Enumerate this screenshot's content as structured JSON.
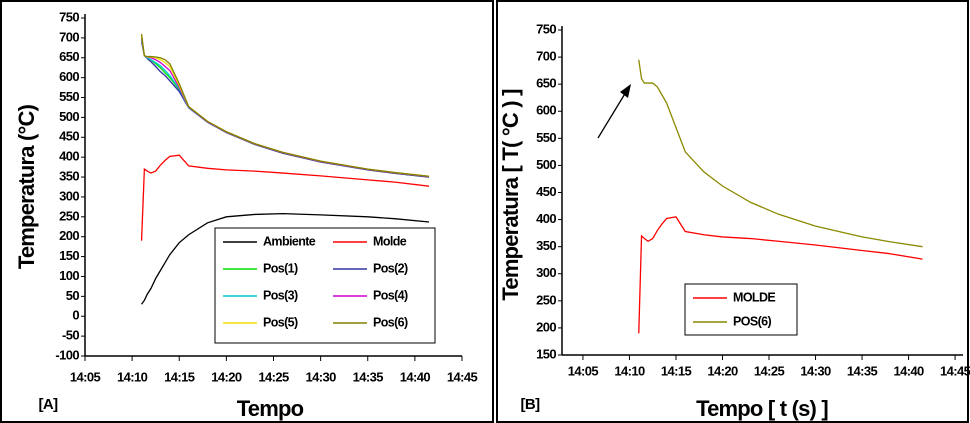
{
  "chart_data": [
    {
      "type": "line",
      "label": "[A]",
      "x_label": "Tempo",
      "y_label": "Temperatura (°C)",
      "xlim": [
        845,
        885
      ],
      "ylim": [
        -100,
        750
      ],
      "xticks": [
        {
          "value": 845,
          "label": "14:05"
        },
        {
          "value": 850,
          "label": "14:10"
        },
        {
          "value": 855,
          "label": "14:15"
        },
        {
          "value": 860,
          "label": "14:20"
        },
        {
          "value": 865,
          "label": "14:25"
        },
        {
          "value": 870,
          "label": "14:30"
        },
        {
          "value": 875,
          "label": "14:35"
        },
        {
          "value": 880,
          "label": "14:40"
        },
        {
          "value": 885,
          "label": "14:45"
        }
      ],
      "yticks": [
        -100,
        -50,
        0,
        50,
        100,
        150,
        200,
        250,
        300,
        350,
        400,
        450,
        500,
        550,
        600,
        650,
        700,
        750
      ],
      "x": [
        851,
        851.3,
        851.6,
        852,
        852.5,
        853,
        853.5,
        854,
        855,
        856,
        858,
        860,
        863,
        866,
        870,
        875,
        878,
        881.5
      ],
      "series": [
        {
          "name": "Ambiente",
          "color": "#000000",
          "values": [
            30,
            40,
            55,
            70,
            95,
            115,
            135,
            155,
            185,
            205,
            235,
            250,
            256,
            258,
            255,
            250,
            245,
            237
          ]
        },
        {
          "name": "Molde",
          "color": "#ff0000",
          "values": [
            190,
            370,
            365,
            360,
            365,
            380,
            392,
            402,
            405,
            378,
            372,
            368,
            365,
            360,
            353,
            343,
            337,
            327
          ]
        },
        {
          "name": "Pos(1)",
          "color": "#00e000",
          "values": [
            700,
            655,
            650,
            645,
            635,
            625,
            612,
            600,
            570,
            525,
            488,
            462,
            432,
            410,
            388,
            368,
            359,
            350
          ]
        },
        {
          "name": "Pos(2)",
          "color": "#3030a0",
          "values": [
            690,
            655,
            648,
            640,
            628,
            615,
            605,
            592,
            565,
            524,
            488,
            462,
            432,
            410,
            388,
            368,
            359,
            350
          ]
        },
        {
          "name": "Pos(3)",
          "color": "#00c8d0",
          "values": [
            695,
            655,
            650,
            645,
            638,
            630,
            618,
            605,
            572,
            525,
            489,
            463,
            433,
            411,
            389,
            369,
            360,
            351
          ]
        },
        {
          "name": "Pos(4)",
          "color": "#d000d0",
          "values": [
            700,
            655,
            652,
            650,
            645,
            638,
            628,
            618,
            575,
            526,
            489,
            463,
            433,
            411,
            389,
            369,
            360,
            351
          ]
        },
        {
          "name": "Pos(5)",
          "color": "#f0e000",
          "values": [
            705,
            655,
            652,
            652,
            650,
            645,
            638,
            628,
            580,
            527,
            490,
            464,
            434,
            412,
            390,
            370,
            361,
            352
          ]
        },
        {
          "name": "Pos(6)",
          "color": "#808000",
          "values": [
            710,
            655,
            653,
            653,
            652,
            650,
            645,
            635,
            585,
            527,
            490,
            464,
            434,
            412,
            390,
            370,
            361,
            352
          ]
        }
      ]
    },
    {
      "type": "line",
      "label": "[B]",
      "x_label": "Tempo [ t (s) ]",
      "y_label": "Temperatura [ T( °C ) ]",
      "xlim": [
        842.75,
        885.85
      ],
      "ylim": [
        150,
        750
      ],
      "xticks": [
        {
          "value": 845,
          "label": "14:05"
        },
        {
          "value": 850,
          "label": "14:10"
        },
        {
          "value": 855,
          "label": "14:15"
        },
        {
          "value": 860,
          "label": "14:20"
        },
        {
          "value": 865,
          "label": "14:25"
        },
        {
          "value": 870,
          "label": "14:30"
        },
        {
          "value": 875,
          "label": "14:35"
        },
        {
          "value": 880,
          "label": "14:40"
        },
        {
          "value": 885,
          "label": "14:45"
        }
      ],
      "yticks": [
        150,
        200,
        250,
        300,
        350,
        400,
        450,
        500,
        550,
        600,
        650,
        700,
        750
      ],
      "x": [
        851,
        851.3,
        851.6,
        852,
        852.5,
        853,
        853.5,
        854,
        855,
        856,
        858,
        860,
        863,
        866,
        870,
        875,
        878,
        881.5
      ],
      "series": [
        {
          "name": "MOLDE",
          "color": "#ff0000",
          "values": [
            190,
            370,
            365,
            360,
            365,
            380,
            392,
            402,
            405,
            378,
            372,
            368,
            365,
            360,
            353,
            343,
            337,
            327
          ]
        },
        {
          "name": "POS(6)",
          "color": "#8a8a00",
          "values": [
            695,
            660,
            652,
            652,
            652,
            645,
            630,
            615,
            570,
            525,
            488,
            462,
            432,
            410,
            388,
            368,
            359,
            350
          ]
        }
      ]
    }
  ]
}
